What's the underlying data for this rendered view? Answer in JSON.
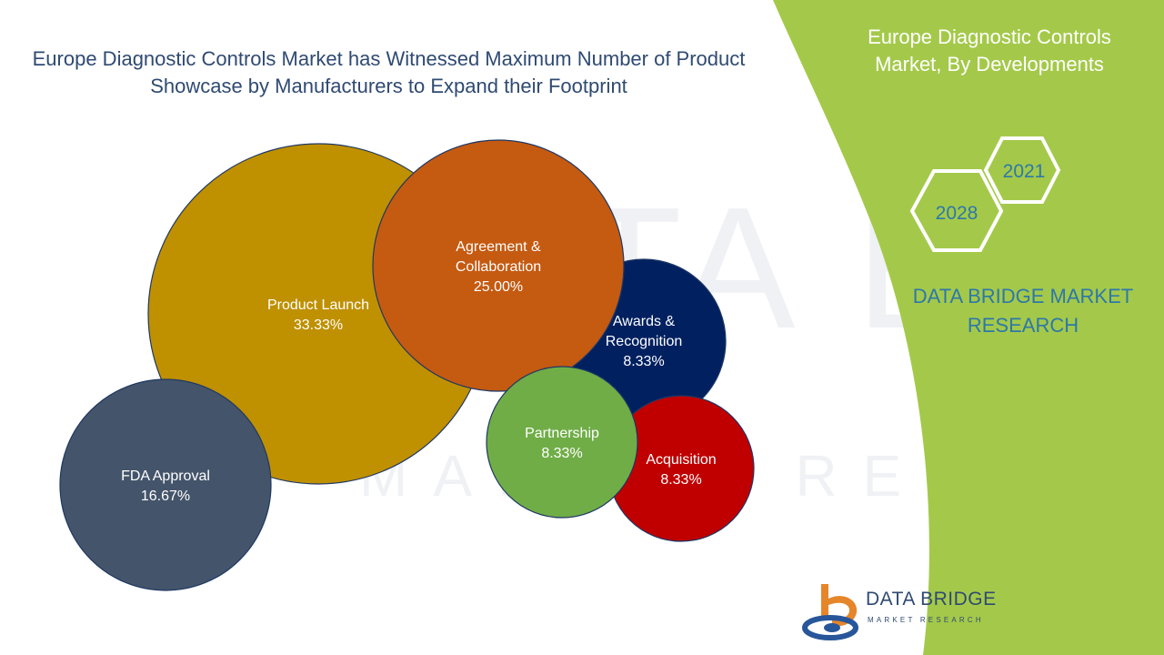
{
  "page": {
    "title": "Europe Diagnostic Controls Market has Witnessed Maximum Number of Product Showcase by Manufacturers to Expand their Footprint",
    "side_title": "Europe Diagnostic Controls Market, By Developments",
    "brand_text": "DATA BRIDGE MARKET RESEARCH",
    "years": [
      "2028",
      "2021"
    ],
    "logo": {
      "name": "DATA BRIDGE",
      "sub": "MARKET RESEARCH"
    },
    "watermark": {
      "word1": "DATA BRIDGE",
      "word2": "MARKET RESEARCH"
    },
    "colors": {
      "green_panel": "#a4c94a",
      "title_text": "#2f4a72",
      "brand_text": "#2e78a8",
      "logo_orange": "#e5862a",
      "logo_blue": "#27569a"
    }
  },
  "chart_data": {
    "type": "bubble",
    "title": "Europe Diagnostic Controls Market has Witnessed Maximum Number of Product Showcase by Manufacturers to Expand their Footprint",
    "series": [
      {
        "label": "Product Launch",
        "value": 33.33,
        "display": "33.33%",
        "color": "#bf9000"
      },
      {
        "label": "FDA Approval",
        "value": 16.67,
        "display": "16.67%",
        "color": "#44546a"
      },
      {
        "label": "Awards & Recognition",
        "value": 8.33,
        "display": "8.33%",
        "color": "#002060"
      },
      {
        "label": "Agreement & Collaboration",
        "value": 25.0,
        "display": "25.00%",
        "color": "#c55a11"
      },
      {
        "label": "Acquisition",
        "value": 8.33,
        "display": "8.33%",
        "color": "#c00000"
      },
      {
        "label": "Partnership",
        "value": 8.33,
        "display": "8.33%",
        "color": "#70ad47"
      }
    ]
  }
}
